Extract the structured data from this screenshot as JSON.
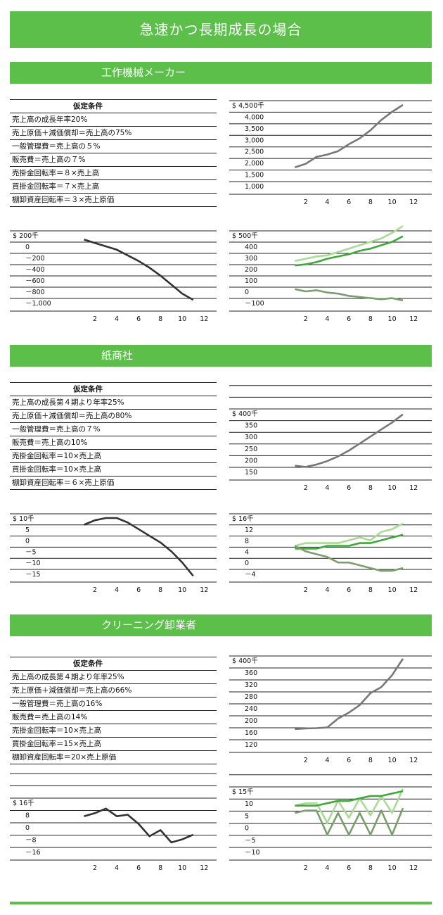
{
  "page_title": "急速かつ長期成長の場合",
  "colors": {
    "banner": "#5bbf4a",
    "gray_line": "#777777",
    "dark_line": "#333333",
    "green_dark": "#3ea83a",
    "green_light": "#a8dc96",
    "green_gray": "#7a9e6c"
  },
  "sections": [
    {
      "title": "工作機械メーカー",
      "conditions_header": "仮定条件",
      "conditions": [
        "売上高の成長年率20%",
        "売上原価＋減価償却＝売上高の75%",
        "一般管理費＝売上高の５%",
        "販売費＝売上高の７%",
        "売掛金回転率＝８×売上高",
        "買掛金回転率＝７×売上高",
        "棚卸資産回転率＝３×売上原価"
      ]
    },
    {
      "title": "紙商社",
      "conditions_header": "仮定条件",
      "conditions": [
        "売上高の成長第４期より年率25%",
        "売上原価＋減価償却＝売上高の80%",
        "一般管理費＝売上高の７%",
        "販売費＝売上高の10%",
        "売掛金回転率＝10×売上高",
        "買掛金回転率＝10×売上高",
        "棚卸資産回転率＝６×売上原価"
      ]
    },
    {
      "title": "クリーニング卸業者",
      "conditions_header": "仮定条件",
      "conditions": [
        "売上高の成長第４期より年率25%",
        "売上原価＋減価償却＝売上高の66%",
        "一般管理費＝売上高の16%",
        "販売費＝売上高の14%",
        "売掛金回転率＝10×売上高",
        "買掛金回転率＝15×売上高",
        "棚卸資産回転率＝20×売上原価"
      ]
    }
  ],
  "chart_data": [
    {
      "id": "s1-sales",
      "type": "line",
      "ylim": [
        750,
        4500
      ],
      "yticks": [
        4500,
        4000,
        3500,
        3000,
        2500,
        2000,
        1500,
        1000
      ],
      "ytick_labels": [
        "$ 4,500千",
        "4,000",
        "3,500",
        "3,000",
        "2,500",
        "2,000",
        "1,500",
        "1,000"
      ],
      "xticks": [
        2,
        4,
        6,
        8,
        10,
        12
      ],
      "xlim": [
        0,
        12.5
      ],
      "series": [
        {
          "color": "gray_line",
          "x": [
            1,
            2,
            3,
            4,
            5,
            6,
            7,
            8,
            9,
            10,
            11
          ],
          "y": [
            1800,
            1950,
            2250,
            2350,
            2500,
            2800,
            3050,
            3400,
            3850,
            4200,
            4500
          ]
        }
      ]
    },
    {
      "id": "s1-cash",
      "type": "line",
      "ylim": [
        -1000,
        200
      ],
      "yticks": [
        200,
        0,
        -200,
        -400,
        -600,
        -800,
        -1000
      ],
      "ytick_labels": [
        "$ 200千",
        "0",
        "－200",
        "－400",
        "－600",
        "－800",
        "－1,000"
      ],
      "xticks": [
        2,
        4,
        6,
        8,
        10,
        12
      ],
      "xlim": [
        0,
        12.5
      ],
      "series": [
        {
          "color": "dark_line",
          "x": [
            1,
            2,
            3,
            4,
            5,
            6,
            7,
            8,
            9,
            10,
            11
          ],
          "y": [
            120,
            60,
            0,
            -60,
            -160,
            -260,
            -380,
            -520,
            -680,
            -840,
            -950
          ]
        }
      ]
    },
    {
      "id": "s1-profit",
      "type": "line",
      "ylim": [
        -150,
        500
      ],
      "yticks": [
        500,
        400,
        300,
        200,
        100,
        0,
        -100
      ],
      "ytick_labels": [
        "$ 500千",
        "400",
        "300",
        "200",
        "100",
        "0",
        "－100"
      ],
      "xticks": [
        2,
        4,
        6,
        8,
        10,
        12
      ],
      "xlim": [
        0,
        12.5
      ],
      "series": [
        {
          "color": "green_light",
          "x": [
            1,
            2,
            3,
            4,
            5,
            6,
            7,
            8,
            9,
            10,
            11
          ],
          "y": [
            270,
            290,
            310,
            320,
            350,
            380,
            410,
            440,
            470,
            520,
            580
          ]
        },
        {
          "color": "green_dark",
          "x": [
            1,
            2,
            3,
            4,
            5,
            6,
            7,
            8,
            9,
            10,
            11
          ],
          "y": [
            230,
            240,
            260,
            290,
            310,
            330,
            360,
            380,
            410,
            440,
            490
          ]
        },
        {
          "color": "green_gray",
          "x": [
            1,
            2,
            3,
            4,
            5,
            6,
            7,
            8,
            9,
            10,
            11
          ],
          "y": [
            20,
            0,
            10,
            -10,
            -20,
            -40,
            -50,
            -60,
            -70,
            -60,
            -80
          ]
        }
      ]
    },
    {
      "id": "s2-sales",
      "type": "line",
      "ylim": [
        125,
        400
      ],
      "yticks": [
        400,
        350,
        300,
        250,
        200,
        150
      ],
      "ytick_labels": [
        "$ 400千",
        "350",
        "300",
        "250",
        "200",
        "150"
      ],
      "xticks": [
        2,
        4,
        6,
        8,
        10,
        12
      ],
      "xlim": [
        0,
        12.5
      ],
      "series": [
        {
          "color": "gray_line",
          "x": [
            1,
            2,
            3,
            4,
            5,
            6,
            7,
            8,
            9,
            10,
            11
          ],
          "y": [
            175,
            170,
            180,
            195,
            215,
            240,
            270,
            300,
            330,
            360,
            395
          ]
        }
      ]
    },
    {
      "id": "s2-cash",
      "type": "line",
      "ylim": [
        -17,
        10
      ],
      "yticks": [
        10,
        5,
        0,
        -5,
        -10,
        -15
      ],
      "ytick_labels": [
        "$ 10千",
        "5",
        "0",
        "－5",
        "－10",
        "－15"
      ],
      "xticks": [
        2,
        4,
        6,
        8,
        10,
        12
      ],
      "xlim": [
        0,
        12.5
      ],
      "series": [
        {
          "color": "dark_line",
          "x": [
            1,
            2,
            3,
            4,
            5,
            6,
            7,
            8,
            9,
            10,
            11
          ],
          "y": [
            7,
            9,
            10,
            10,
            8,
            5,
            2,
            -1,
            -5,
            -10,
            -16
          ]
        }
      ]
    },
    {
      "id": "s2-profit",
      "type": "line",
      "ylim": [
        -6,
        16
      ],
      "yticks": [
        16,
        12,
        8,
        4,
        0,
        -4
      ],
      "ytick_labels": [
        "$ 16千",
        "12",
        "8",
        "4",
        "0",
        "－4"
      ],
      "xticks": [
        2,
        4,
        6,
        8,
        10,
        12
      ],
      "xlim": [
        0,
        12.5
      ],
      "series": [
        {
          "color": "green_light",
          "x": [
            1,
            2,
            3,
            4,
            5,
            6,
            7,
            8,
            9,
            10,
            11
          ],
          "y": [
            6,
            7,
            7,
            7,
            7,
            8,
            9,
            8,
            11,
            12,
            14
          ]
        },
        {
          "color": "green_dark",
          "x": [
            1,
            2,
            3,
            4,
            5,
            6,
            7,
            8,
            9,
            10,
            11
          ],
          "y": [
            5,
            5,
            5,
            6,
            6,
            6,
            7,
            7,
            8,
            9,
            10
          ]
        },
        {
          "color": "green_gray",
          "x": [
            1,
            2,
            3,
            4,
            5,
            6,
            7,
            8,
            9,
            10,
            11
          ],
          "y": [
            6,
            4,
            3,
            2,
            0,
            0,
            -1,
            -2,
            -3,
            -3,
            -2
          ]
        }
      ]
    },
    {
      "id": "s3-sales",
      "type": "line",
      "ylim": [
        100,
        400
      ],
      "yticks": [
        400,
        360,
        320,
        280,
        240,
        200,
        160,
        120
      ],
      "ytick_labels": [
        "$ 400千",
        "360",
        "320",
        "280",
        "240",
        "200",
        "160",
        "120"
      ],
      "xticks": [
        2,
        4,
        6,
        8,
        10,
        12
      ],
      "xlim": [
        0,
        12.5
      ],
      "series": [
        {
          "color": "gray_line",
          "x": [
            1,
            2,
            3,
            4,
            5,
            6,
            7,
            8,
            9,
            10,
            11
          ],
          "y": [
            170,
            172,
            173,
            175,
            205,
            225,
            250,
            290,
            310,
            350,
            405
          ]
        }
      ]
    },
    {
      "id": "s3-cash",
      "type": "line",
      "ylim": [
        -20,
        16
      ],
      "yticks": [
        16,
        8,
        0,
        -8,
        -16
      ],
      "ytick_labels": [
        "$ 16千",
        "8",
        "0",
        "－8",
        "－16"
      ],
      "xticks": [
        2,
        4,
        6,
        8,
        10,
        12
      ],
      "xlim": [
        0,
        12.5
      ],
      "series": [
        {
          "color": "dark_line",
          "x": [
            1,
            2,
            3,
            4,
            5,
            6,
            7,
            8,
            9,
            10,
            11
          ],
          "y": [
            7,
            9,
            12,
            7,
            8,
            2,
            -6,
            -2,
            -10,
            -8,
            -5
          ]
        }
      ]
    },
    {
      "id": "s3-profit",
      "type": "line",
      "ylim": [
        -12,
        15
      ],
      "yticks": [
        15,
        10,
        5,
        0,
        -5,
        -10
      ],
      "ytick_labels": [
        "$ 15千",
        "10",
        "5",
        "0",
        "－5",
        "－10"
      ],
      "xticks": [
        2,
        4,
        6,
        8,
        10,
        12
      ],
      "xlim": [
        0,
        12.5
      ],
      "series": [
        {
          "color": "green_light",
          "x": [
            1,
            2,
            3,
            4,
            5,
            6,
            7,
            8,
            9,
            10,
            11
          ],
          "y": [
            9,
            10,
            10,
            2,
            11,
            4,
            12,
            5,
            13,
            6,
            16
          ]
        },
        {
          "color": "green_dark",
          "x": [
            1,
            2,
            3,
            4,
            5,
            6,
            7,
            8,
            9,
            10,
            11
          ],
          "y": [
            9,
            9,
            9,
            10,
            11,
            11,
            12,
            13,
            13,
            14,
            15
          ]
        },
        {
          "color": "green_gray",
          "x": [
            1,
            2,
            3,
            4,
            5,
            6,
            7,
            8,
            9,
            10,
            11
          ],
          "y": [
            6,
            7,
            7,
            -3,
            6,
            -3,
            6,
            -3,
            7,
            -3,
            8
          ]
        }
      ]
    }
  ]
}
